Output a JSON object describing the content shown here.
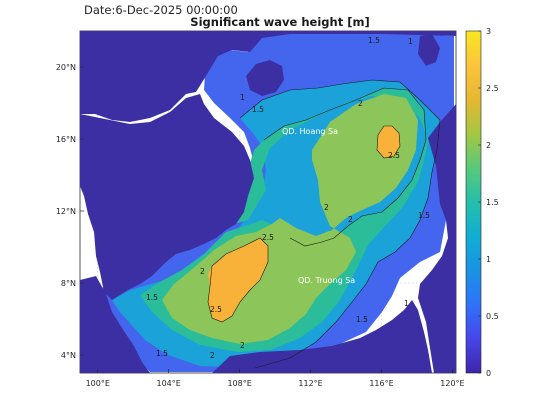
{
  "header": {
    "date_text": "Date:6-Dec-2025 00:00:00",
    "title": "Significant wave height [m]"
  },
  "map": {
    "lon_ticks": [
      "100°E",
      "104°E",
      "108°E",
      "112°E",
      "116°E",
      "120°E"
    ],
    "lat_ticks": [
      "4°N",
      "8°N",
      "12°N",
      "16°N",
      "20°N"
    ],
    "lon_range": [
      99,
      120.2
    ],
    "lat_range": [
      3,
      22
    ],
    "place_labels": [
      "QD. Hoang Sa",
      "QD. Truong Sa"
    ],
    "contour_labels": [
      "1",
      "1.5",
      "2",
      "2.5"
    ],
    "grid": true
  },
  "colorbar": {
    "ticks": [
      "0",
      "0.5",
      "1",
      "1.5",
      "2",
      "2.5",
      "3"
    ],
    "range": [
      0,
      3
    ],
    "colormap": [
      "#3e26a8",
      "#4746eb",
      "#2f72fa",
      "#1993e2",
      "#10aed4",
      "#26bfaa",
      "#59c97a",
      "#a4c742",
      "#e6b731",
      "#fcc43b",
      "#f8e820"
    ]
  },
  "colors": {
    "land": "#3c2fa4",
    "sea_1": "#4466ee",
    "sea_1_5": "#1aa2d9",
    "sea_2": "#2bbd99",
    "sea_2_5": "#8cc55a",
    "sea_3": "#f8b23a"
  }
}
